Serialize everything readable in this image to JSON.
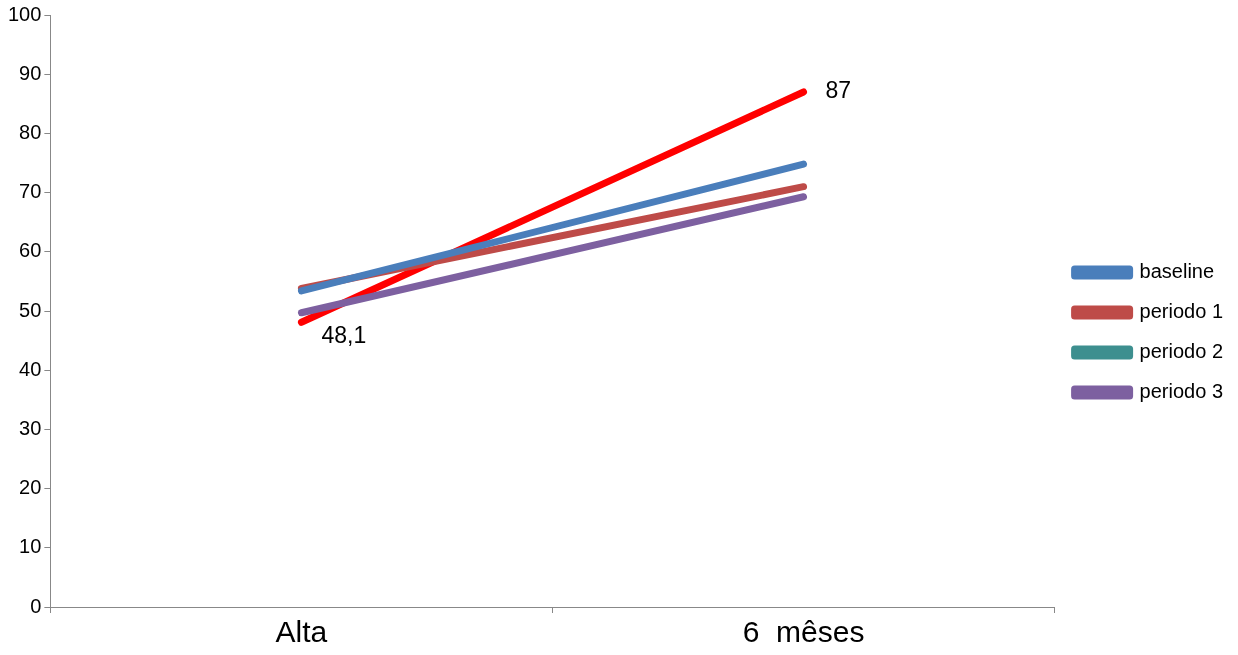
{
  "chart_data": {
    "type": "line",
    "categories": [
      "Alta",
      "6  mêses"
    ],
    "series": [
      {
        "name": "baseline",
        "color": "#4a7ebb",
        "values": [
          53.4,
          74.8
        ]
      },
      {
        "name": "periodo 1",
        "color": "#be4b48",
        "values": [
          53.8,
          71.0
        ]
      },
      {
        "name": "periodo 2",
        "color": "#3d8f8f",
        "values": [
          null,
          null
        ]
      },
      {
        "name": "periodo 3",
        "color": "#7d60a0",
        "values": [
          49.7,
          69.3
        ]
      },
      {
        "color": "#ff0000",
        "values": [
          48.1,
          87
        ],
        "value_labels": [
          "48,1",
          "87"
        ]
      }
    ],
    "ylim": [
      0,
      100
    ],
    "yticks": [
      0,
      10,
      20,
      30,
      40,
      50,
      60,
      70,
      80,
      90,
      100
    ],
    "grid": false,
    "legend": "right",
    "marker": "none",
    "line_style": "solid"
  }
}
